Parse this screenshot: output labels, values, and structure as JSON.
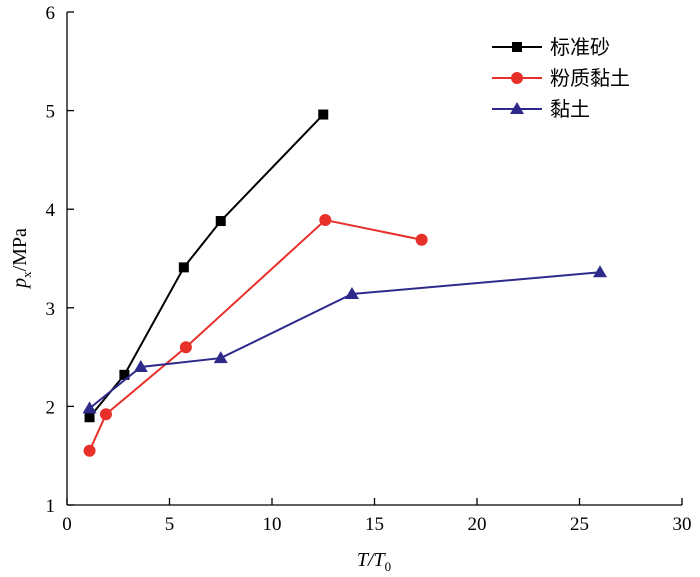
{
  "chart_data": {
    "type": "line",
    "xlabel": {
      "main": "T/T",
      "sub": "0"
    },
    "ylabel": {
      "main": "p",
      "sub": "x",
      "rest": "/MPa"
    },
    "xlim": [
      0,
      30
    ],
    "ylim": [
      1,
      6
    ],
    "xticks": [
      0,
      5,
      10,
      15,
      20,
      25,
      30
    ],
    "yticks": [
      1,
      2,
      3,
      4,
      5,
      6
    ],
    "grid": false,
    "legend_position": "top-right",
    "series": [
      {
        "name": "标准砂",
        "color": "#000000",
        "marker": "square",
        "x": [
          1.1,
          2.8,
          5.7,
          7.5,
          12.5
        ],
        "y": [
          1.89,
          2.32,
          3.41,
          3.88,
          4.96
        ]
      },
      {
        "name": "粉质黏土",
        "color": "#e8302a",
        "marker": "circle",
        "x": [
          1.1,
          1.9,
          5.8,
          12.6,
          17.3
        ],
        "y": [
          1.55,
          1.92,
          2.6,
          3.89,
          3.69
        ]
      },
      {
        "name": "黏土",
        "color": "#2e2a8c",
        "marker": "triangle",
        "x": [
          1.1,
          3.6,
          7.5,
          13.9,
          26.0
        ],
        "y": [
          1.98,
          2.4,
          2.49,
          3.14,
          3.36
        ]
      }
    ]
  }
}
